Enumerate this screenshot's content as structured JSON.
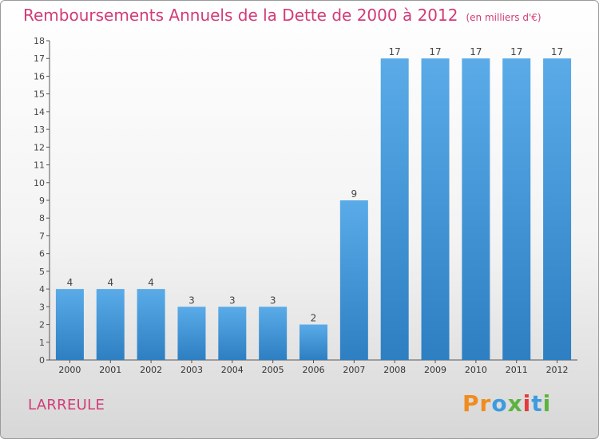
{
  "chart_data": {
    "type": "bar",
    "title": "Remboursements Annuels de la Dette de 2000 à 2012",
    "subtitle": "(en milliers d'€)",
    "categories": [
      "2000",
      "2001",
      "2002",
      "2003",
      "2004",
      "2005",
      "2006",
      "2007",
      "2008",
      "2009",
      "2010",
      "2011",
      "2012"
    ],
    "values": [
      4,
      4,
      4,
      3,
      3,
      3,
      2,
      9,
      17,
      17,
      17,
      17,
      17
    ],
    "ylim": [
      0,
      18
    ],
    "yticks": [
      0,
      1,
      2,
      3,
      4,
      5,
      6,
      7,
      8,
      9,
      10,
      11,
      12,
      13,
      14,
      15,
      16,
      17,
      18
    ],
    "grid": false,
    "bar_color_top": "#5aabe8",
    "bar_color_bottom": "#2d7fc2"
  },
  "footer": {
    "commune": "LARREULE"
  },
  "logo": {
    "letters": [
      "P",
      "r",
      "o",
      "x",
      "i",
      "t",
      "i"
    ],
    "colors": [
      "#f08c1e",
      "#f08c1e",
      "#3d9be0",
      "#5db33f",
      "#e23b3b",
      "#3d9be0",
      "#5db33f"
    ]
  },
  "colors": {
    "accent": "#d23b78"
  }
}
